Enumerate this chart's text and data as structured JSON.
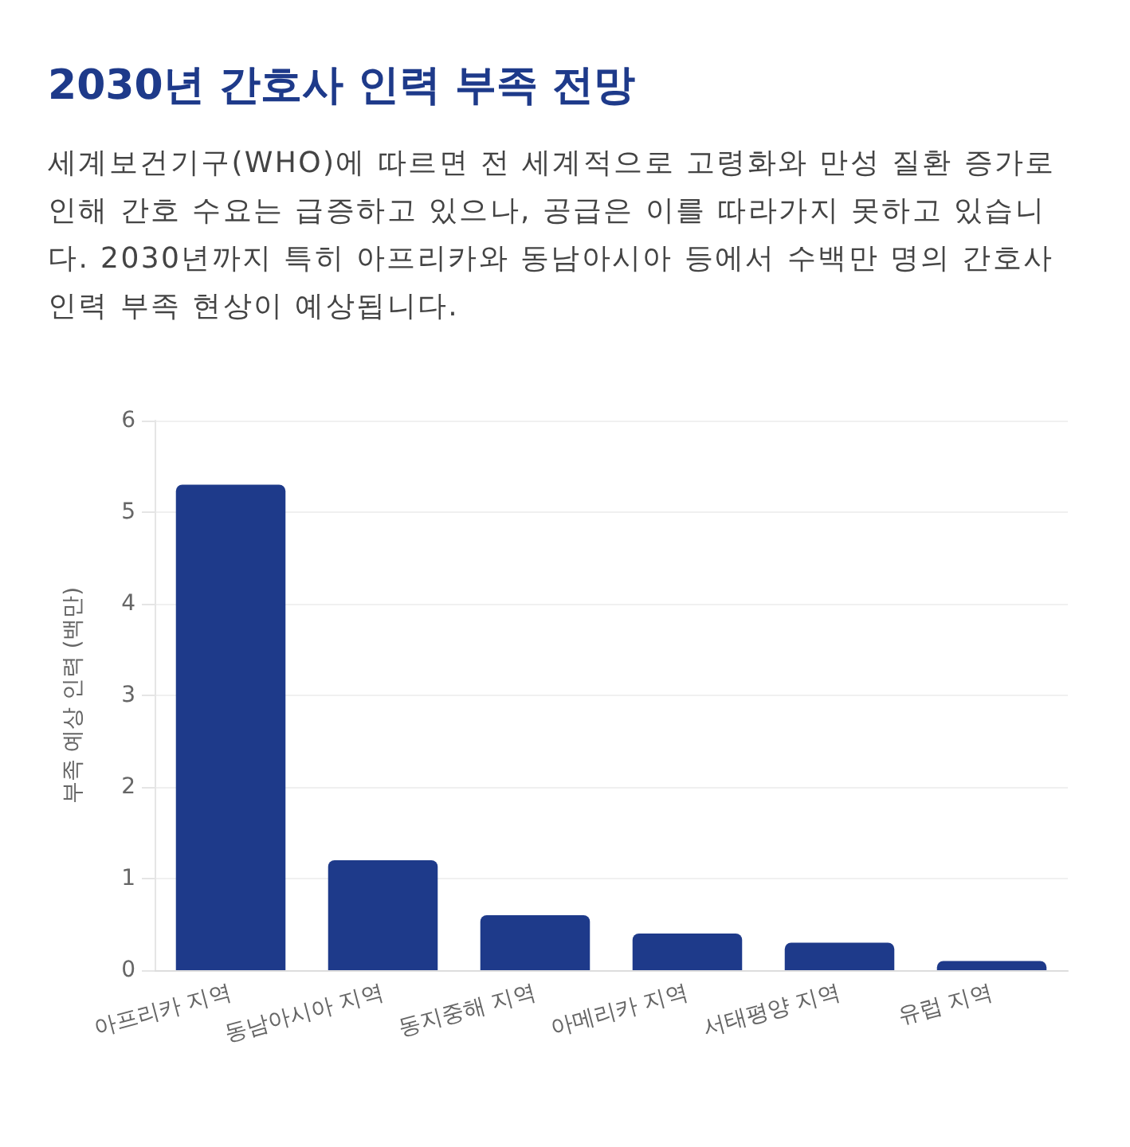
{
  "chart_data": {
    "type": "bar",
    "title": "2030년 간호사 인력 부족 전망",
    "subtitle": "세계보건기구(WHO)에 따르면 전 세계적으로 고령화와 만성 질환 증가로 인해 간호 수요는 급증하고 있으나, 공급은 이를 따라가지 못하고 있습니다. 2030년까지 특히 아프리카와 동남아시아 등에서 수백만 명의 간호사 인력 부족 현상이 예상됩니다.",
    "ylabel": "부족 예상 인력 (백만)",
    "categories": [
      "아프리카 지역",
      "동남아시아 지역",
      "동지중해 지역",
      "아메리카 지역",
      "서태평양 지역",
      "유럽 지역"
    ],
    "values": [
      5.3,
      1.2,
      0.6,
      0.4,
      0.3,
      0.1
    ],
    "color": "#1e3a8a",
    "ylim": [
      0,
      6
    ],
    "yticks": [
      0,
      1,
      2,
      3,
      4,
      5,
      6
    ],
    "grid": "y"
  }
}
